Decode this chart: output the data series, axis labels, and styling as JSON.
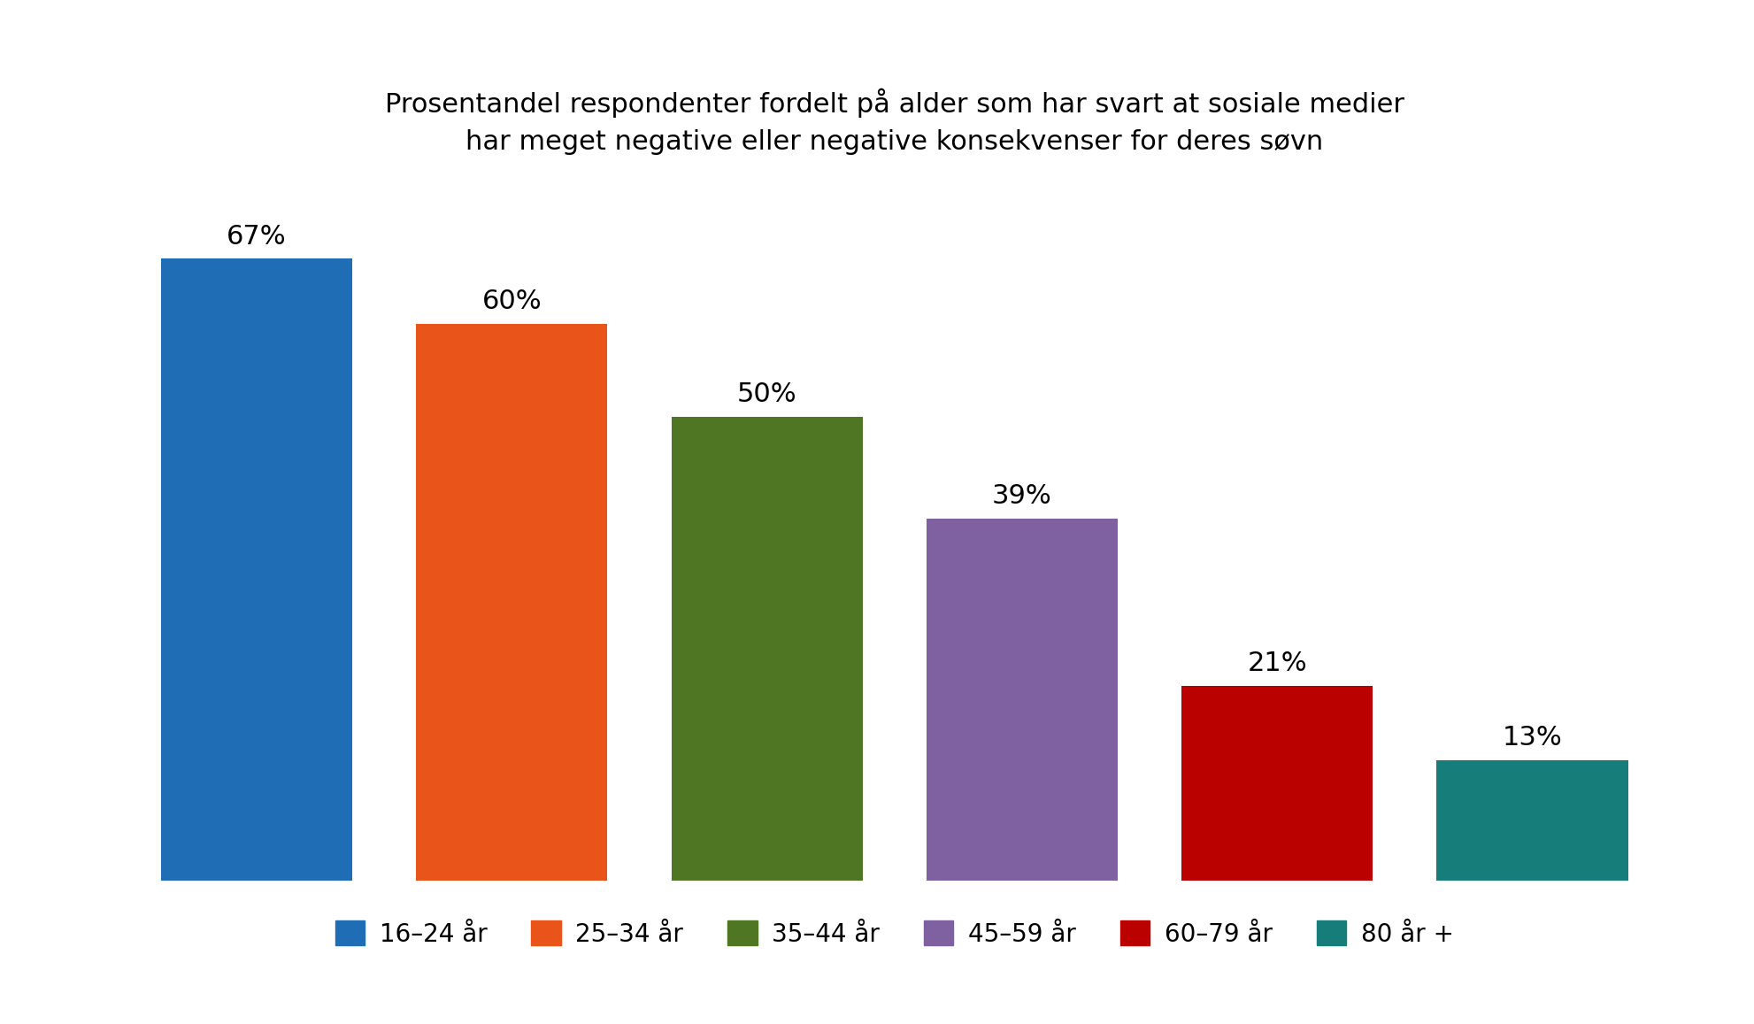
{
  "title": "Prosentandel respondenter fordelt på alder som har svart at sosiale medier\nhar meget negative eller negative konsekvenser for deres søvn",
  "categories": [
    "16–24 år",
    "25–34 år",
    "35–44 år",
    "45–59 år",
    "60–79 år",
    "80 år +"
  ],
  "values": [
    67,
    60,
    50,
    39,
    21,
    13
  ],
  "bar_colors": [
    "#1f6eb5",
    "#e8541a",
    "#4f7623",
    "#7f60a0",
    "#bb0000",
    "#177d7a"
  ],
  "value_labels": [
    "67%",
    "60%",
    "50%",
    "39%",
    "21%",
    "13%"
  ],
  "ylim": [
    0,
    75
  ],
  "background_color": "#ffffff",
  "title_fontsize": 22,
  "value_label_fontsize": 22,
  "legend_fontsize": 20,
  "bar_width": 0.75
}
